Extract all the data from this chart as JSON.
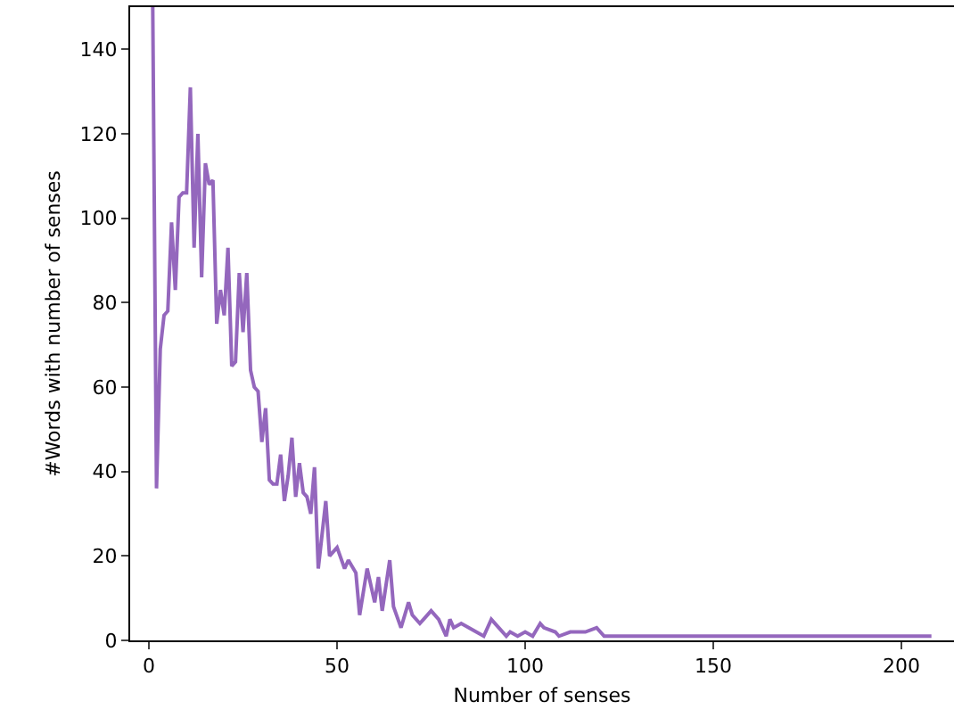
{
  "chart_data": {
    "type": "line",
    "xlabel": "Number of senses",
    "ylabel": "#Words with number of senses",
    "xlim": [
      -5,
      214
    ],
    "xticks": [
      0,
      50,
      100,
      150,
      200
    ],
    "ylim": [
      0,
      150
    ],
    "yticks": [
      0,
      20,
      40,
      60,
      80,
      100,
      120,
      140
    ],
    "grid": false,
    "marker": "none",
    "line_style": "solid",
    "series": [
      {
        "color": "#9467bd",
        "x": [
          1,
          2,
          3,
          4,
          5,
          6,
          7,
          8,
          9,
          10,
          11,
          12,
          13,
          14,
          15,
          16,
          17,
          18,
          19,
          20,
          21,
          22,
          23,
          24,
          25,
          26,
          27,
          28,
          29,
          30,
          31,
          32,
          33,
          34,
          35,
          36,
          37,
          38,
          39,
          40,
          41,
          42,
          43,
          44,
          45,
          47,
          48,
          50,
          52,
          53,
          55,
          56,
          58,
          60,
          61,
          62,
          64,
          65,
          67,
          69,
          70,
          72,
          73,
          75,
          77,
          79,
          80,
          81,
          83,
          85,
          87,
          89,
          91,
          93,
          95,
          96,
          98,
          100,
          102,
          104,
          105,
          108,
          109,
          112,
          114,
          116,
          119,
          121,
          208
        ],
        "values": [
          150,
          36,
          69,
          77,
          78,
          99,
          83,
          105,
          106,
          106,
          131,
          93,
          120,
          86,
          113,
          108,
          109,
          75,
          83,
          77,
          93,
          65,
          66,
          87,
          73,
          87,
          64,
          60,
          59,
          47,
          55,
          38,
          37,
          37,
          44,
          33,
          39,
          48,
          34,
          42,
          35,
          34,
          30,
          41,
          17,
          33,
          20,
          22,
          17,
          19,
          16,
          6,
          17,
          9,
          15,
          7,
          19,
          8,
          3,
          9,
          6,
          4,
          5,
          7,
          5,
          1,
          5,
          3,
          4,
          3,
          2,
          1,
          5,
          3,
          1,
          2,
          1,
          2,
          1,
          4,
          3,
          2,
          1,
          2,
          2,
          2,
          3,
          1,
          1
        ]
      }
    ]
  }
}
